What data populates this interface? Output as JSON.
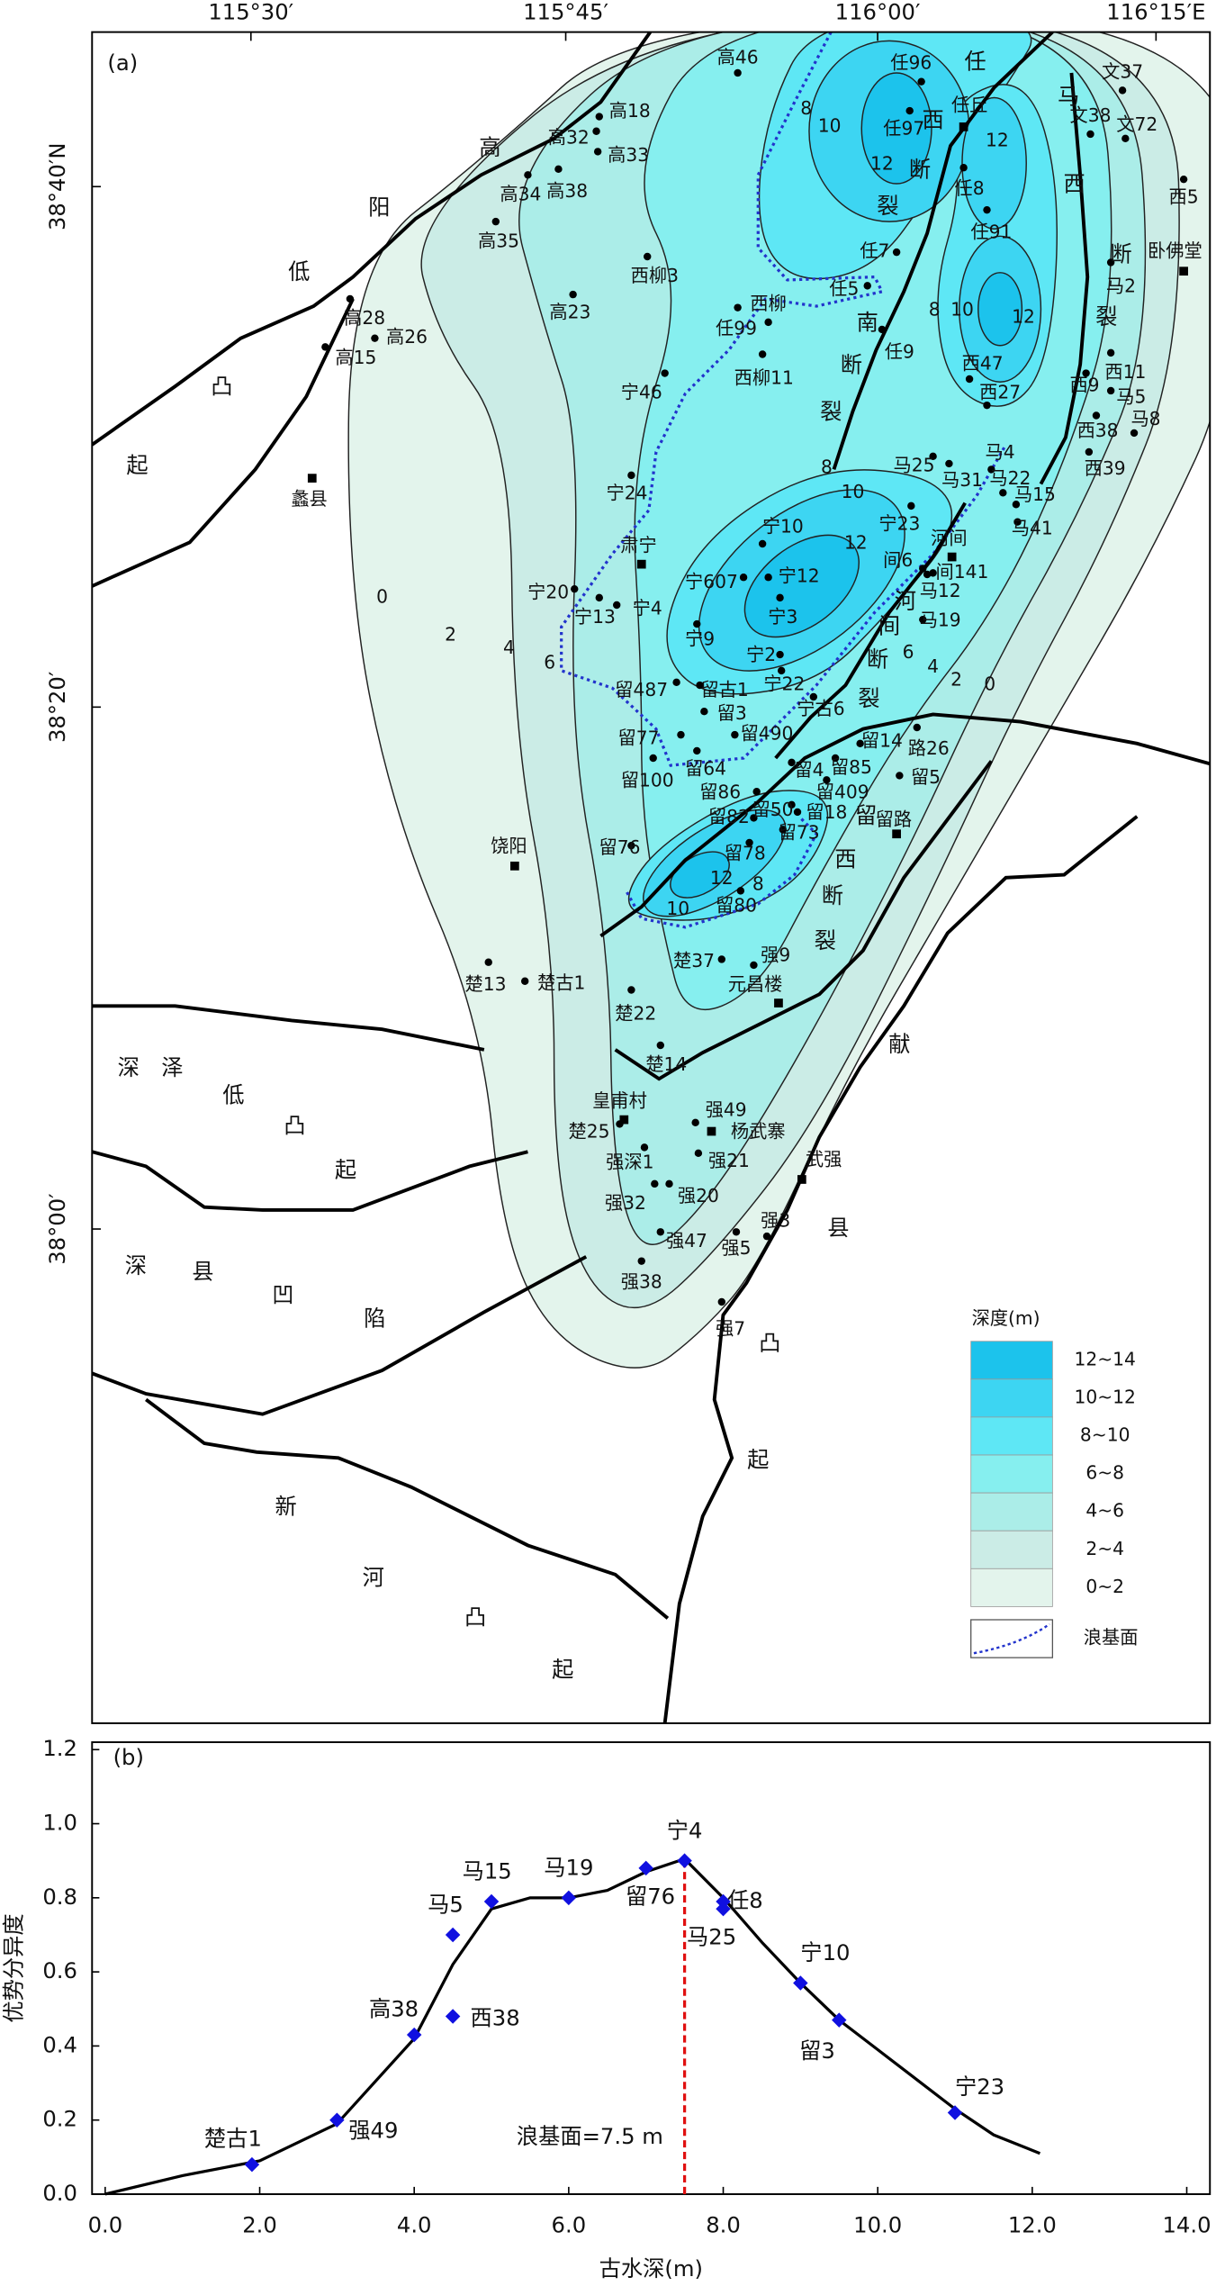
{
  "map": {
    "panel_label": "(a)",
    "top_ticks": [
      "115°30′",
      "115°45′",
      "116°00′",
      "116°15′E"
    ],
    "left_ticks": [
      "38°40′N",
      "38°20′",
      "38°00′"
    ],
    "wells": [
      "高46",
      "任96",
      "高18",
      "高32",
      "高33",
      "高34",
      "高38",
      "高35",
      "西柳3",
      "高23",
      "高28",
      "高26",
      "高15",
      "宁46",
      "西柳",
      "任99",
      "西柳11",
      "任97",
      "任8",
      "任91",
      "任7",
      "任5",
      "任9",
      "西47",
      "西27",
      "文37",
      "文38",
      "文72",
      "西5",
      "西9",
      "西11",
      "马2",
      "马5",
      "马8",
      "西38",
      "西39",
      "马4",
      "马25",
      "马31",
      "马22",
      "马15",
      "马41",
      "宁24",
      "宁10",
      "宁23",
      "间6",
      "间141",
      "宁607",
      "宁12",
      "宁3",
      "宁20",
      "宁13",
      "宁4",
      "宁9",
      "宁2",
      "宁22",
      "马12",
      "马19",
      "留487",
      "留古1",
      "留3",
      "宁古6",
      "留490",
      "留77",
      "留64",
      "留100",
      "留4",
      "留14",
      "路26",
      "留85",
      "留409",
      "留5",
      "留86",
      "留82",
      "留50",
      "留18",
      "留73",
      "留76",
      "留78",
      "留80",
      "楚13",
      "楚古1",
      "楚37",
      "强9",
      "楚22",
      "楚14",
      "楚25",
      "强49",
      "强深1",
      "强21",
      "强32",
      "强20",
      "强3",
      "强47",
      "强5",
      "强38",
      "强7"
    ],
    "towns": [
      "任丘",
      "卧佛堂",
      "肃宁",
      "河间",
      "留路",
      "饶阳",
      "元昌楼",
      "皇甫村",
      "杨武寨",
      "武强",
      "蠡县"
    ],
    "annotations": [
      "高",
      "阳",
      "低",
      "凸",
      "起",
      "深",
      "泽",
      "低",
      "凸",
      "起",
      "深",
      "县",
      "凹",
      "陷",
      "新",
      "河",
      "凸",
      "起",
      "献",
      "县",
      "凸",
      "起",
      "任",
      "西",
      "断",
      "裂",
      "马",
      "西",
      "断",
      "裂",
      "南",
      "断",
      "裂",
      "河",
      "间",
      "断",
      "裂",
      "留",
      "西",
      "断",
      "裂"
    ],
    "contour_labels": [
      0,
      2,
      4,
      6,
      8,
      10,
      12,
      8,
      10,
      12,
      8,
      10,
      12,
      12,
      10,
      12,
      8,
      6,
      4,
      2,
      0
    ],
    "legend": {
      "title": "深度(m)",
      "items": [
        {
          "label": "12~14",
          "color": "#1cc3ec"
        },
        {
          "label": "10~12",
          "color": "#3dd5f2"
        },
        {
          "label": "8~10",
          "color": "#5ee7f5"
        },
        {
          "label": "6~8",
          "color": "#86efef"
        },
        {
          "label": "4~6",
          "color": "#abede8"
        },
        {
          "label": "2~4",
          "color": "#cbece6"
        },
        {
          "label": "0~2",
          "color": "#e3f4ec"
        }
      ],
      "wave_base": {
        "label": "浪基面",
        "color": "#2233cc"
      }
    }
  },
  "chart_data": {
    "type": "scatter",
    "panel_label": "(b)",
    "x_label": "古水深(m)",
    "y_label": "优势分异度",
    "xlim": [
      -0.17,
      14.3
    ],
    "ylim": [
      0,
      1.22
    ],
    "xticks": [
      {
        "value": 0,
        "label": "0.0"
      },
      {
        "value": 2,
        "label": "2.0"
      },
      {
        "value": 4,
        "label": "4.0"
      },
      {
        "value": 6,
        "label": "6.0"
      },
      {
        "value": 8,
        "label": "8.0"
      },
      {
        "value": 10,
        "label": "10.0"
      },
      {
        "value": 12,
        "label": "12.0"
      },
      {
        "value": 14,
        "label": "14.0"
      }
    ],
    "yticks": [
      {
        "value": 0,
        "label": "0.0"
      },
      {
        "value": 0.2,
        "label": "0.2"
      },
      {
        "value": 0.4,
        "label": "0.4"
      },
      {
        "value": 0.6,
        "label": "0.6"
      },
      {
        "value": 0.8,
        "label": "0.8"
      },
      {
        "value": 1,
        "label": "1.0"
      },
      {
        "value": 1.2,
        "label": "1.2"
      }
    ],
    "series": [
      {
        "mode": "line",
        "color": "#000000",
        "x": [
          0,
          1,
          2,
          3,
          4,
          4.5,
          5,
          5.5,
          6,
          6.5,
          7,
          7.5,
          8,
          8.5,
          9,
          9.5,
          10,
          10.5,
          11,
          11.5,
          12.1
        ],
        "values": [
          0,
          0.05,
          0.09,
          0.19,
          0.42,
          0.62,
          0.77,
          0.8,
          0.8,
          0.82,
          0.87,
          0.905,
          0.8,
          0.68,
          0.57,
          0.47,
          0.39,
          0.31,
          0.23,
          0.16,
          0.11
        ]
      },
      {
        "mode": "markers",
        "color": "#1010e0",
        "x": [
          1.9,
          3.0,
          4.0,
          4.5,
          4.5,
          5.0,
          6.0,
          7.0,
          7.5,
          8.0,
          8.0,
          9.0,
          9.5,
          11.0
        ],
        "values": [
          0.08,
          0.2,
          0.43,
          0.48,
          0.7,
          0.79,
          0.8,
          0.88,
          0.9,
          0.79,
          0.77,
          0.57,
          0.47,
          0.22
        ],
        "point_labels": [
          "楚古1",
          "强49",
          "高38",
          "西38",
          "马5",
          "马15",
          "马19",
          "留76",
          "宁4",
          "任8",
          "马25",
          "宁10",
          "留3",
          "宁23"
        ]
      }
    ],
    "reference_line": {
      "x": 7.5,
      "y_end": 0.9,
      "label": "浪基面=7.5 m",
      "color": "#e01010"
    }
  }
}
